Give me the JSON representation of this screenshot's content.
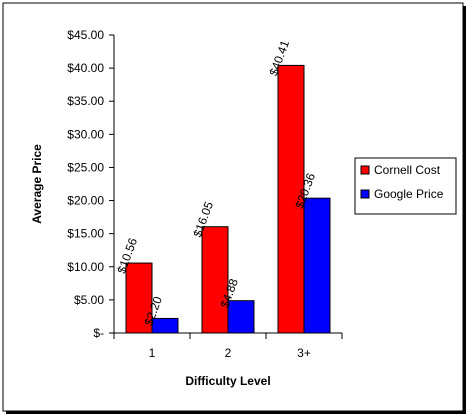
{
  "chart_data": {
    "type": "bar",
    "x_label": "Difficulty Level",
    "y_label": "Average Price",
    "categories": [
      "1",
      "2",
      "3+"
    ],
    "series": [
      {
        "name": "Cornell Cost",
        "color": "#ff0000",
        "values": [
          10.56,
          16.05,
          40.41
        ],
        "value_labels": [
          "$10.56",
          "$16.05",
          "$40.41"
        ]
      },
      {
        "name": "Google Price",
        "color": "#0000ff",
        "values": [
          2.2,
          4.88,
          20.36
        ],
        "value_labels": [
          "$2.20",
          "$4.88",
          "$20.36"
        ]
      }
    ],
    "ylim": [
      0,
      45
    ],
    "yticks": [
      {
        "value": 0,
        "label": "$-"
      },
      {
        "value": 5,
        "label": "$5.00"
      },
      {
        "value": 10,
        "label": "$10.00"
      },
      {
        "value": 15,
        "label": "$15.00"
      },
      {
        "value": 20,
        "label": "$20.00"
      },
      {
        "value": 25,
        "label": "$25.00"
      },
      {
        "value": 30,
        "label": "$30.00"
      },
      {
        "value": 35,
        "label": "$35.00"
      },
      {
        "value": 40,
        "label": "$40.00"
      },
      {
        "value": 45,
        "label": "$45.00"
      }
    ],
    "legend": "right",
    "grid": false
  }
}
